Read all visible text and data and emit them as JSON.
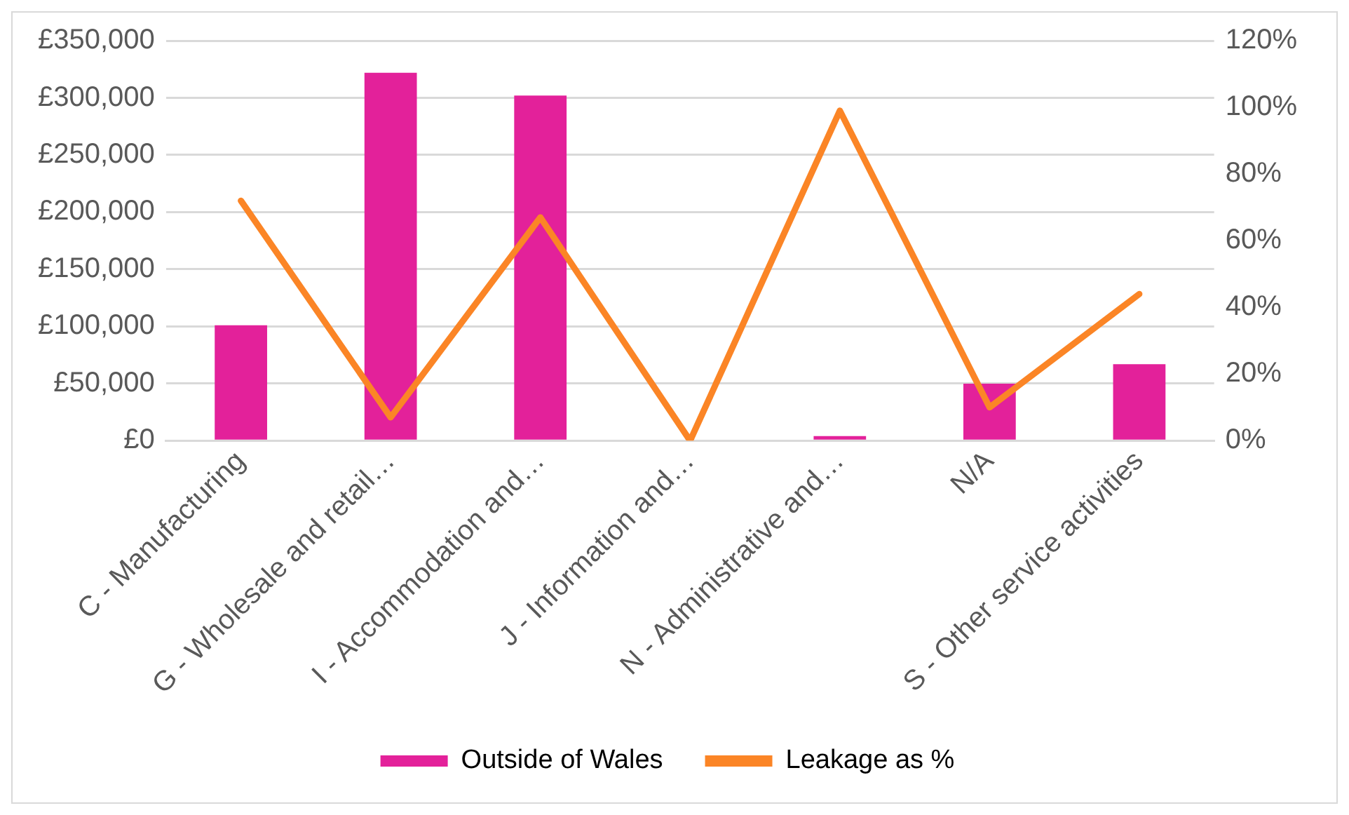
{
  "chart_data": {
    "type": "bar",
    "categories": [
      "C - Manufacturing",
      "G - Wholesale and retail…",
      "I - Accommodation and…",
      "J - Information and…",
      "N - Administrative and…",
      "N/A",
      "S - Other service activities"
    ],
    "series": [
      {
        "name": "Outside of Wales",
        "color": "#e3219a",
        "values": [
          101000,
          322000,
          302000,
          0,
          4000,
          50000,
          67000
        ]
      },
      {
        "name": "Leakage as %",
        "type": "line",
        "axis": "y2",
        "color": "#fb8526",
        "values": [
          72,
          7,
          67,
          0,
          99,
          10,
          44
        ]
      }
    ],
    "ylim": [
      0,
      350000
    ],
    "yticks": [
      {
        "value": 0,
        "label": "£0"
      },
      {
        "value": 50000,
        "label": "£50,000"
      },
      {
        "value": 100000,
        "label": "£100,000"
      },
      {
        "value": 150000,
        "label": "£150,000"
      },
      {
        "value": 200000,
        "label": "£200,000"
      },
      {
        "value": 250000,
        "label": "£250,000"
      },
      {
        "value": 300000,
        "label": "£300,000"
      },
      {
        "value": 350000,
        "label": "£350,000"
      }
    ],
    "y2lim": [
      0,
      120
    ],
    "y2ticks": [
      {
        "value": 0,
        "label": "0%"
      },
      {
        "value": 20,
        "label": "20%"
      },
      {
        "value": 40,
        "label": "40%"
      },
      {
        "value": 60,
        "label": "60%"
      },
      {
        "value": 80,
        "label": "80%"
      },
      {
        "value": 100,
        "label": "100%"
      },
      {
        "value": 120,
        "label": "120%"
      }
    ],
    "grid": "y",
    "legend": "bottom",
    "marker": "none",
    "line_style": "solid"
  }
}
